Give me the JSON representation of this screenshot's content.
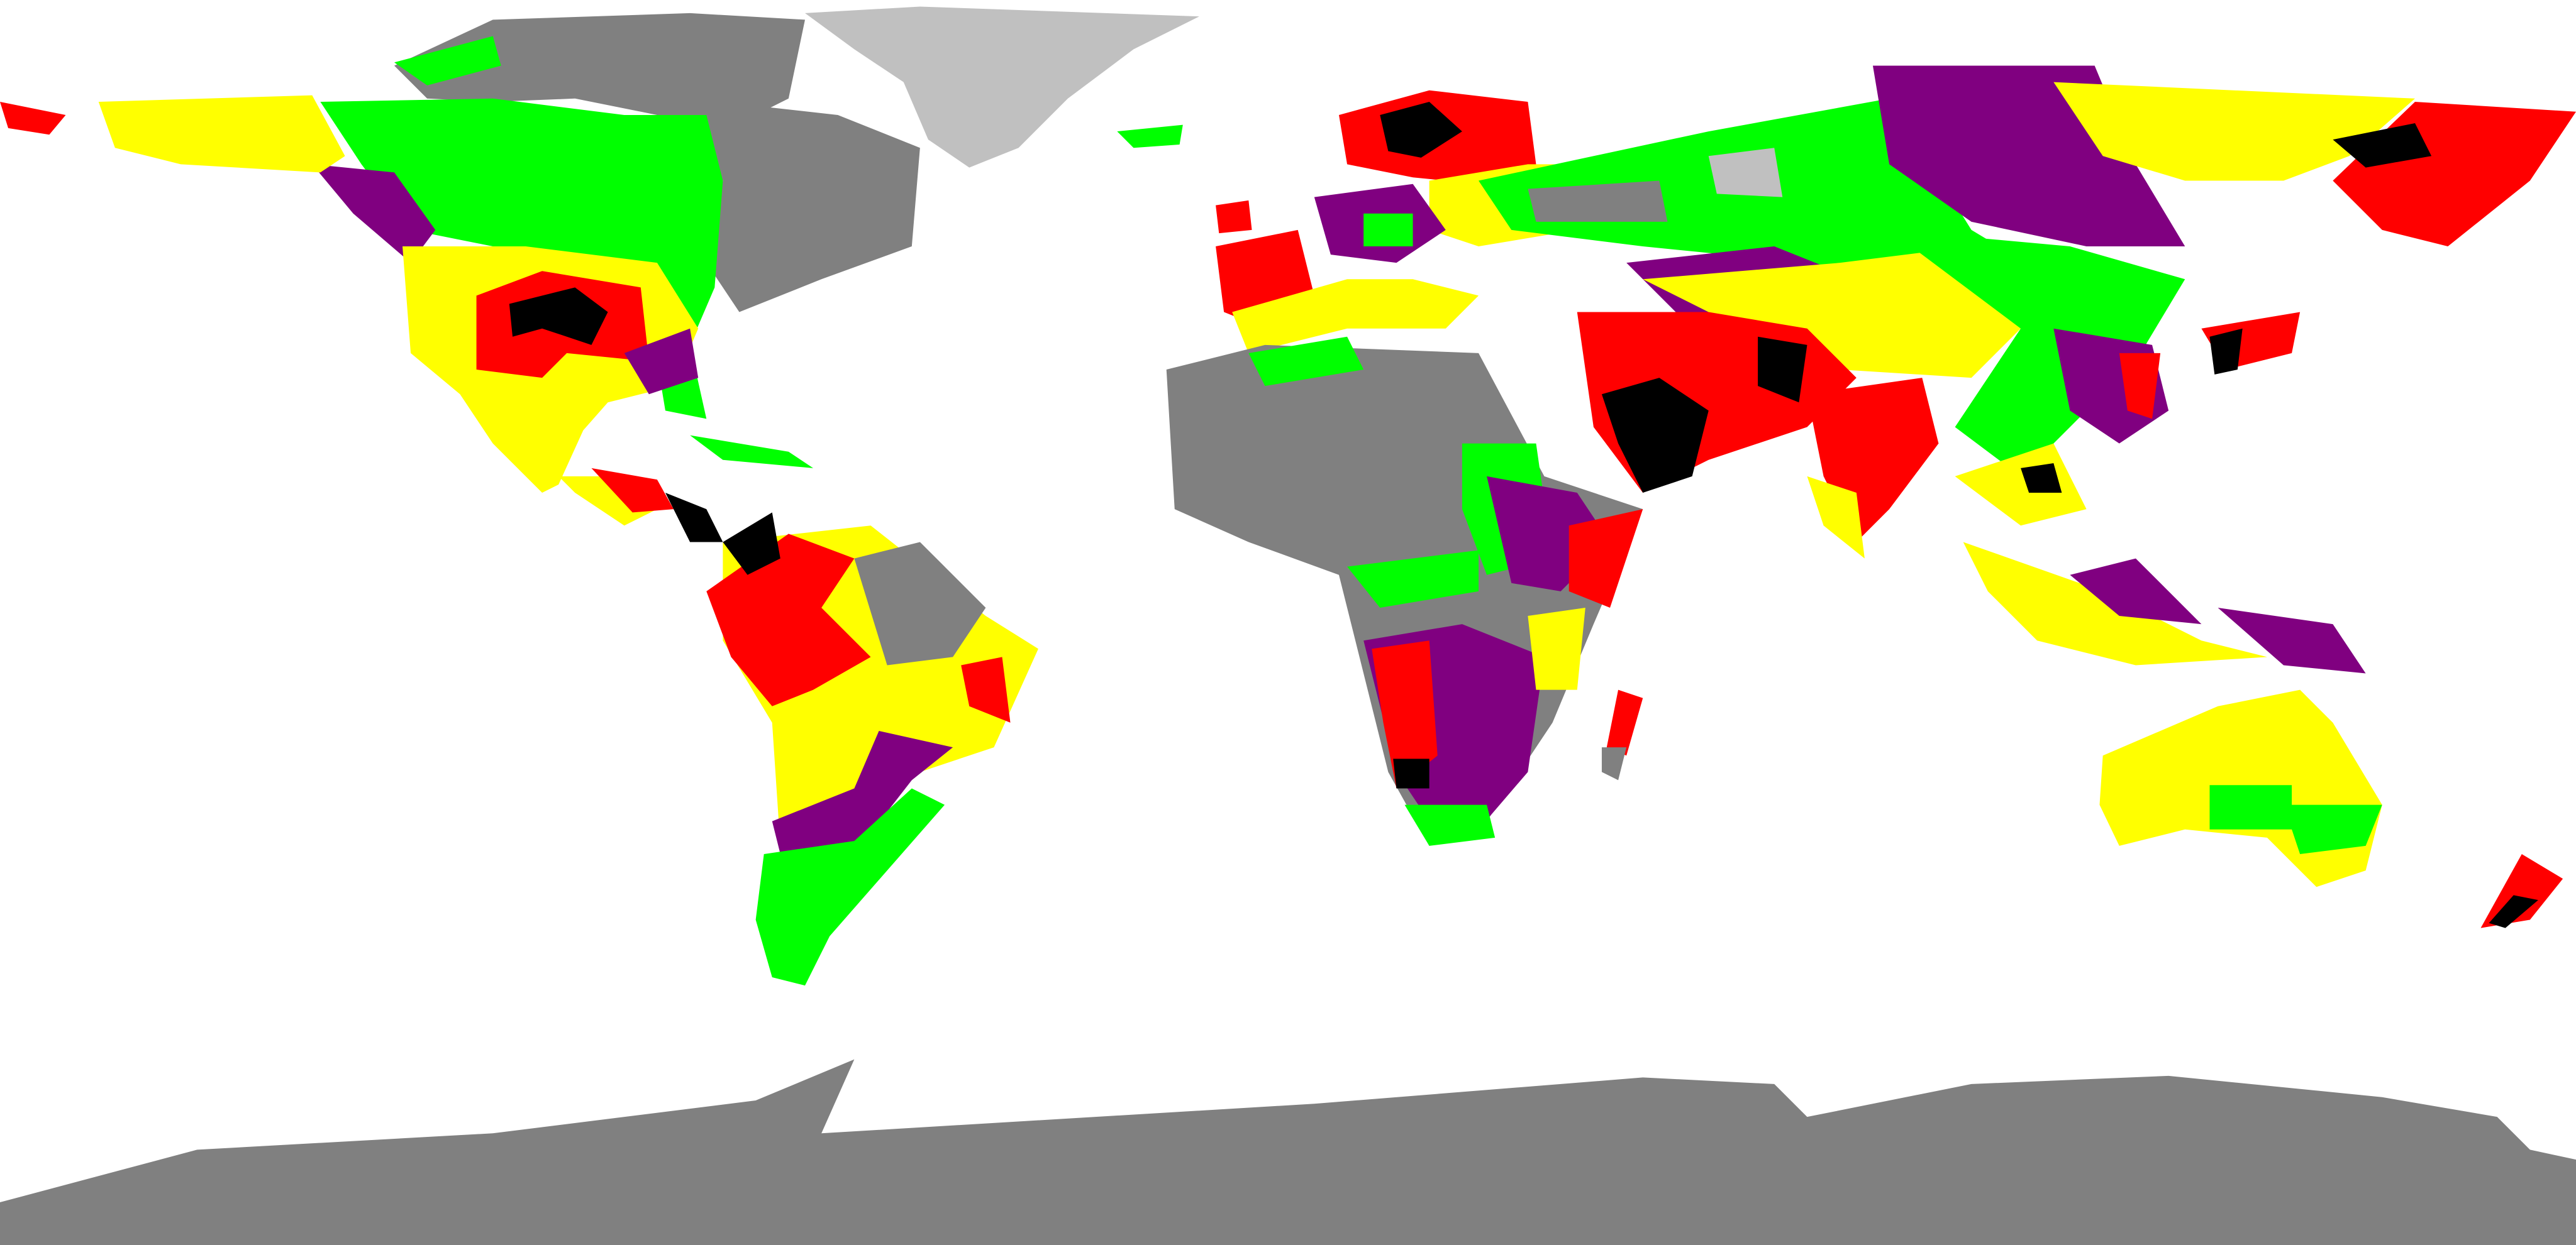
{
  "map": {
    "colors": {
      "gray": "#808080",
      "lightgray": "#c0c0c0",
      "green": "#00ff00",
      "yellow": "#ffff00",
      "red": "#ff0000",
      "purple": "#800080",
      "black": "#000000"
    }
  }
}
